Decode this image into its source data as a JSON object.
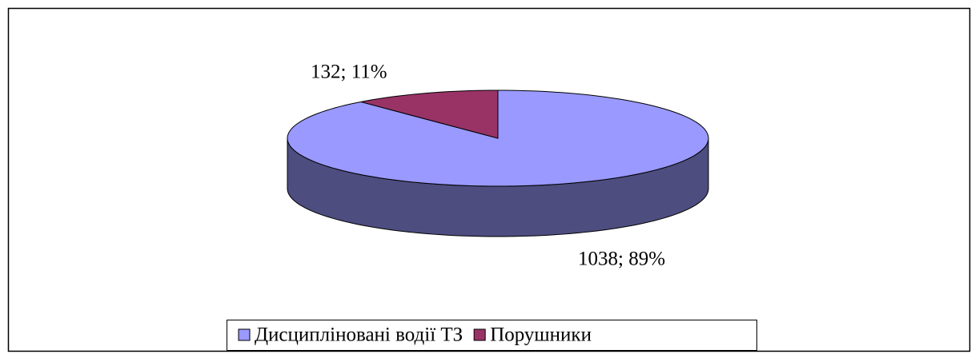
{
  "chart_data": {
    "type": "pie",
    "categories": [
      "Дисципліновані водії ТЗ",
      "Порушники"
    ],
    "values": [
      1038,
      132
    ],
    "value_labels": [
      "1038; 89%",
      "132; 11%"
    ],
    "colors": [
      "#9999ff",
      "#993366"
    ],
    "three_d": true,
    "legend": "bottom"
  }
}
